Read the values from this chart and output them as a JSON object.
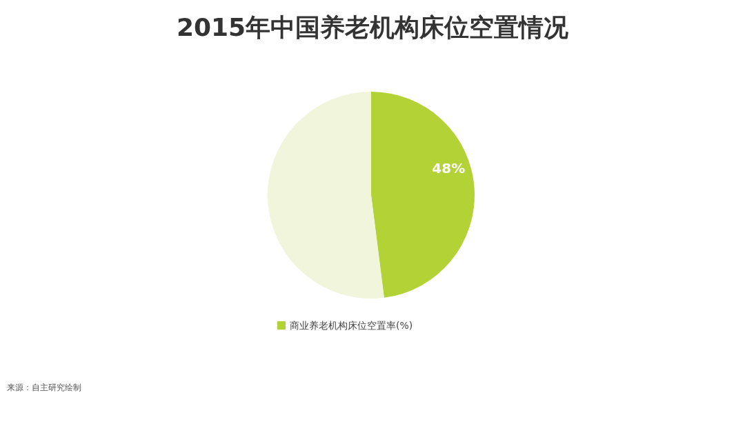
{
  "chart_data": {
    "type": "pie",
    "title": "2015年中国养老机构床位空置情况",
    "categories": [
      "商业养老机构床位空置率(%)",
      null
    ],
    "values": [
      48,
      52
    ],
    "colors": [
      "#b2d235",
      "#f0f5dc"
    ],
    "value_labels": [
      "48%",
      null
    ],
    "legend": "bottom",
    "annotations": [
      "来源：自主研究绘制"
    ]
  }
}
